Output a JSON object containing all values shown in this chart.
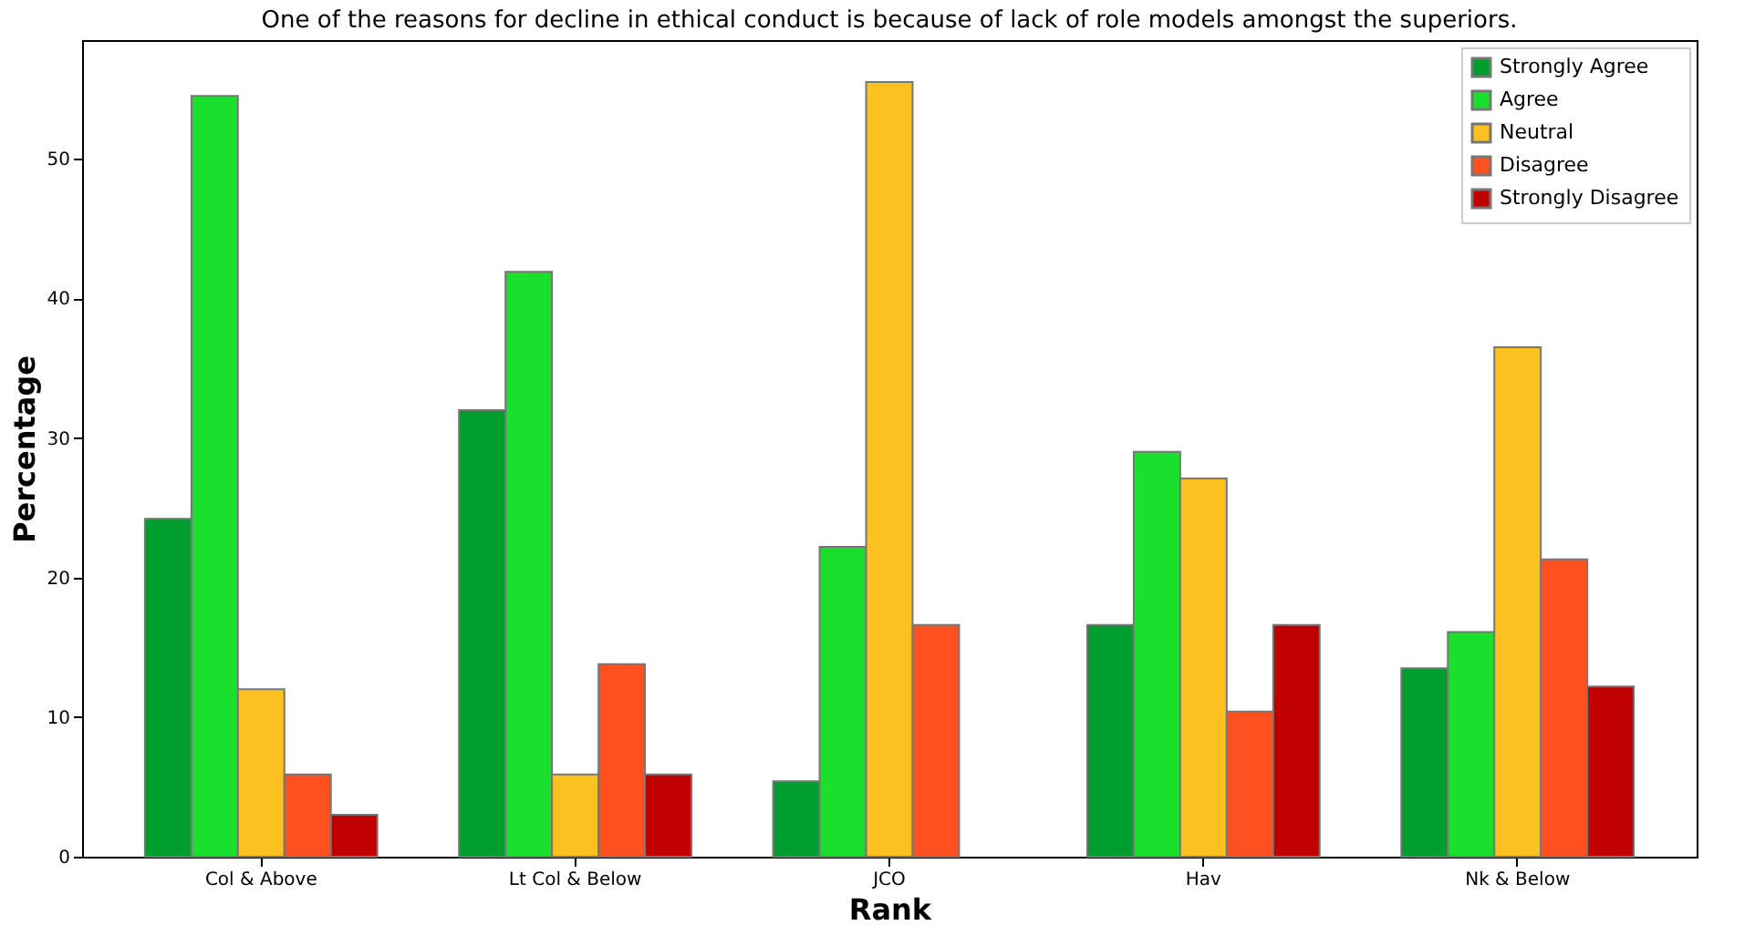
{
  "chart_data": {
    "type": "bar",
    "title": "One of the reasons for decline in ethical conduct is because of lack of role models amongst the superiors.",
    "xlabel": "Rank",
    "ylabel": "Percentage",
    "categories": [
      "Col & Above",
      "Lt Col & Below",
      "JCO",
      "Hav",
      "Nk & Below"
    ],
    "series": [
      {
        "name": "Strongly Agree",
        "color": "#009e2e",
        "values": [
          24.2,
          32.0,
          5.4,
          16.6,
          13.5
        ]
      },
      {
        "name": "Agree",
        "color": "#1adf2c",
        "values": [
          54.5,
          41.9,
          22.2,
          29.0,
          16.1
        ]
      },
      {
        "name": "Neutral",
        "color": "#fcc020",
        "values": [
          12.0,
          5.9,
          55.5,
          27.1,
          36.5
        ]
      },
      {
        "name": "Disagree",
        "color": "#ff5020",
        "values": [
          5.9,
          13.8,
          16.6,
          10.4,
          21.3
        ]
      },
      {
        "name": "Strongly Disagree",
        "color": "#c00000",
        "values": [
          3.0,
          5.9,
          null,
          16.6,
          12.2
        ]
      }
    ],
    "ylim": [
      0,
      58.5
    ],
    "yticks": [
      0,
      10,
      20,
      30,
      40,
      50
    ],
    "grid": false,
    "legend": "top right"
  }
}
